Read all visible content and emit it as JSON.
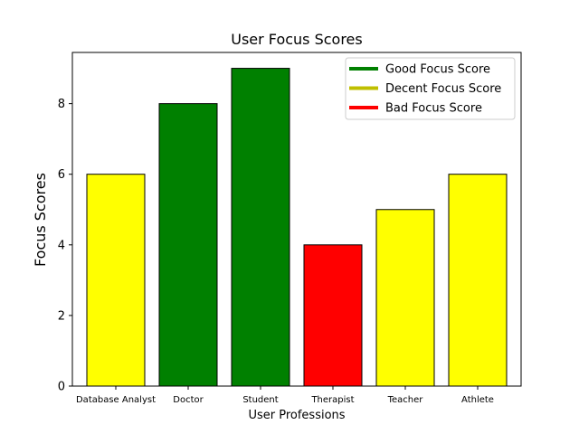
{
  "chart_data": {
    "type": "bar",
    "title": "User Focus Scores",
    "xlabel": "User Professions",
    "ylabel": "Focus Scores",
    "categories": [
      "Database Analyst",
      "Doctor",
      "Student",
      "Therapist",
      "Teacher",
      "Athlete"
    ],
    "values": [
      6,
      8,
      9,
      4,
      5,
      6
    ],
    "bar_colors": [
      "#ffff00",
      "#008000",
      "#008000",
      "#ff0000",
      "#ffff00",
      "#ffff00"
    ],
    "ylim": [
      0,
      9.45
    ],
    "yticks": [
      0,
      2,
      4,
      6,
      8
    ],
    "grid": false,
    "legend": {
      "position": "top-right",
      "items": [
        {
          "label": "Good Focus Score",
          "color": "#008000"
        },
        {
          "label": "Decent Focus Score",
          "color": "#bfbf00"
        },
        {
          "label": "Bad Focus Score",
          "color": "#ff0000"
        }
      ]
    }
  }
}
